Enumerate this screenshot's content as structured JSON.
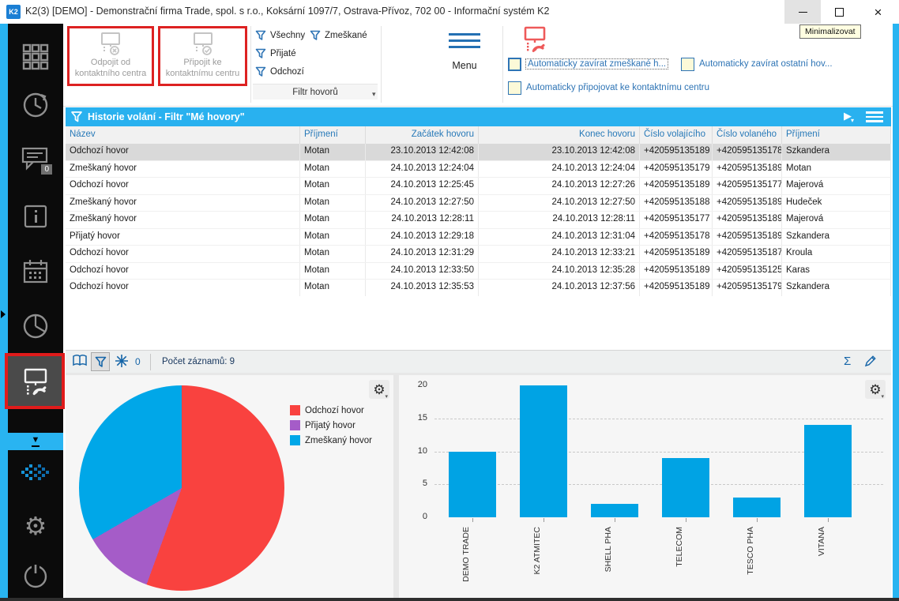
{
  "window": {
    "title": "K2(3) [DEMO] - Demonstrační firma Trade, spol. s r.o., Koksární 1097/7, Ostrava-Přívoz, 702 00 - Informační systém K2",
    "app_icon_text": "K2",
    "controls": {
      "minimize": "Minimalizovat",
      "close_glyph": "×"
    },
    "tooltip": "Minimalizovat"
  },
  "sidebar": {
    "items": [
      {
        "name": "apps-grid-icon"
      },
      {
        "name": "history-clock-icon"
      },
      {
        "name": "messages-icon",
        "badge": "0"
      },
      {
        "name": "info-icon"
      },
      {
        "name": "calendar-icon"
      },
      {
        "name": "pie-chart-icon"
      },
      {
        "name": "contact-center-icon",
        "selected": true
      },
      {
        "name": "collapse-icon",
        "glyph": "▼"
      },
      {
        "name": "k2-logo-icon"
      },
      {
        "name": "settings-gear-icon",
        "glyph": "⚙"
      },
      {
        "name": "power-icon"
      }
    ],
    "badge_count": "0",
    "collapse_glyph": "▼",
    "gear_glyph": "⚙"
  },
  "ribbon": {
    "disconnect_button": "Odpojit od kontaktního centra",
    "connect_button": "Připojit ke kontaktnímu centru",
    "filters": {
      "all": "Všechny",
      "missed": "Zmeškané",
      "received": "Přijaté",
      "outgoing": "Odchozí",
      "group_label": "Filtr hovorů"
    },
    "menu_label": "Menu",
    "checkboxes": [
      {
        "label": "Automaticky zavírat zmeškané h...",
        "checked": false,
        "focused": true
      },
      {
        "label": "Automaticky zavírat ostatní hov...",
        "checked": false,
        "focused": false
      },
      {
        "label": "Automaticky připojovat ke kontaktnímu centru",
        "checked": false,
        "focused": false
      }
    ]
  },
  "grid": {
    "title": "Historie volání - Filtr \"Mé hovory\"",
    "columns": [
      "Název",
      "Příjmení",
      "Začátek hovoru",
      "Konec hovoru",
      "Číslo volajícího",
      "Číslo volaného",
      "Příjmení"
    ],
    "right_aligned_columns": [
      2,
      3
    ],
    "selected_row": 0,
    "rows": [
      [
        "Odchozí hovor",
        "Motan",
        "23.10.2013 12:42:08",
        "23.10.2013 12:42:08",
        "+420595135189",
        "+420595135178",
        "Szkandera"
      ],
      [
        "Zmeškaný hovor",
        "Motan",
        "24.10.2013 12:24:04",
        "24.10.2013 12:24:04",
        "+420595135179",
        "+420595135189",
        "Motan"
      ],
      [
        "Odchozí hovor",
        "Motan",
        "24.10.2013 12:25:45",
        "24.10.2013 12:27:26",
        "+420595135189",
        "+420595135177",
        "Majerová"
      ],
      [
        "Zmeškaný hovor",
        "Motan",
        "24.10.2013 12:27:50",
        "24.10.2013 12:27:50",
        "+420595135188",
        "+420595135189",
        "Hudeček"
      ],
      [
        "Zmeškaný hovor",
        "Motan",
        "24.10.2013 12:28:11",
        "24.10.2013 12:28:11",
        "+420595135177",
        "+420595135189",
        "Majerová"
      ],
      [
        "Přijatý hovor",
        "Motan",
        "24.10.2013 12:29:18",
        "24.10.2013 12:31:04",
        "+420595135178",
        "+420595135189",
        "Szkandera"
      ],
      [
        "Odchozí hovor",
        "Motan",
        "24.10.2013 12:31:29",
        "24.10.2013 12:33:21",
        "+420595135189",
        "+420595135187",
        "Kroula"
      ],
      [
        "Odchozí hovor",
        "Motan",
        "24.10.2013 12:33:50",
        "24.10.2013 12:35:28",
        "+420595135189",
        "+420595135125",
        "Karas"
      ],
      [
        "Odchozí hovor",
        "Motan",
        "24.10.2013 12:35:53",
        "24.10.2013 12:37:56",
        "+420595135189",
        "+420595135179",
        "Szkandera"
      ]
    ]
  },
  "statusbar": {
    "frozen_count": "0",
    "record_count_label": "Počet záznamů: 9",
    "sigma_glyph": "Σ"
  },
  "chart_data": [
    {
      "type": "pie",
      "labels": [
        "Odchozí hovor",
        "Přijatý hovor",
        "Zmeškaný hovor"
      ],
      "values": [
        5,
        1,
        3
      ],
      "colors": [
        "#f9423f",
        "#a55cc8",
        "#00a7e8"
      ],
      "legend_position": "right",
      "start_angle_deg": 0,
      "direction": "clockwise"
    },
    {
      "type": "bar",
      "categories": [
        "DEMO TRADE",
        "K2 ATMITEC",
        "SHELL PHA",
        "TELECOM",
        "TESCO PHA",
        "VITANA"
      ],
      "values": [
        10,
        20,
        2,
        9,
        3,
        14
      ],
      "ylim": [
        0,
        20
      ],
      "yticks": [
        0,
        5,
        10,
        15,
        20
      ],
      "bar_color": "#00a3e4",
      "grid": "dashed-horizontal",
      "xlabel": "",
      "ylabel": "",
      "title": ""
    }
  ],
  "colors": {
    "accent_blue": "#29b4f1",
    "grid_header_blue": "#29b1ef",
    "link_blue": "#2e74b5",
    "alert_red": "#dd2222",
    "status_icon_red": "#ee5a5a"
  }
}
